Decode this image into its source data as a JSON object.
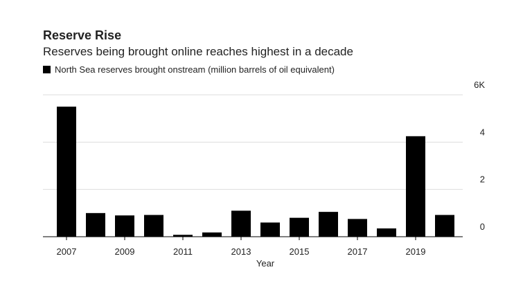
{
  "chart_data": {
    "type": "bar",
    "title": "Reserve Rise",
    "subtitle": "Reserves being brought online reaches highest in a decade",
    "x_label": "Year",
    "series": [
      {
        "name": "North Sea reserves brought onstream (million barrels of oil equivalent)",
        "color": "#000000",
        "values": [
          5.5,
          1.0,
          0.9,
          0.92,
          0.08,
          0.18,
          1.1,
          0.6,
          0.8,
          1.05,
          0.75,
          0.35,
          4.25,
          0.92
        ]
      }
    ],
    "categories": [
      "2007",
      null,
      "2009",
      null,
      "2011",
      null,
      "2013",
      null,
      "2015",
      null,
      "2017",
      null,
      "2019",
      null
    ],
    "ylim": [
      0,
      6
    ],
    "yticks": [
      0,
      2,
      4,
      {
        "value": 6,
        "label": "6K"
      }
    ],
    "grid": true
  }
}
